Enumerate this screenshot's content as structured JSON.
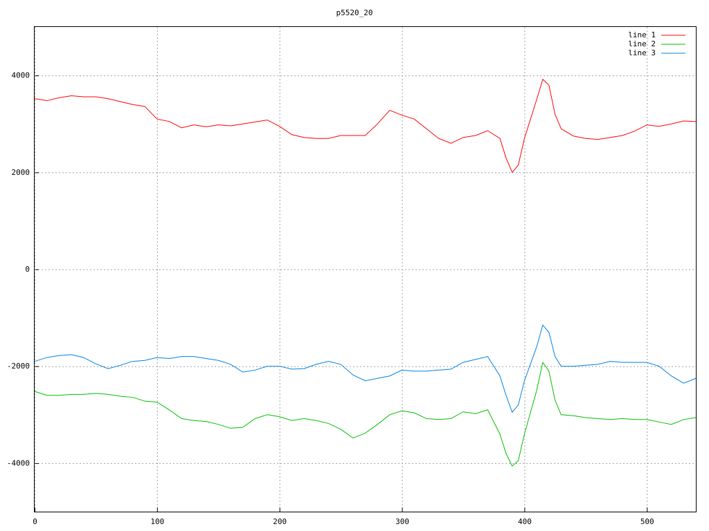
{
  "chart_data": {
    "type": "line",
    "title": "p5520_20",
    "x": [
      0,
      10,
      20,
      30,
      40,
      50,
      60,
      70,
      80,
      90,
      100,
      110,
      120,
      130,
      140,
      150,
      160,
      170,
      180,
      190,
      200,
      210,
      220,
      230,
      240,
      250,
      260,
      270,
      280,
      290,
      300,
      310,
      320,
      330,
      340,
      350,
      360,
      370,
      380,
      385,
      390,
      395,
      400,
      410,
      415,
      420,
      425,
      430,
      440,
      450,
      460,
      470,
      480,
      490,
      500,
      510,
      520,
      530,
      540
    ],
    "series": [
      {
        "name": "line 1",
        "color": "#ff0000",
        "values": [
          3520,
          3480,
          3540,
          3580,
          3560,
          3560,
          3520,
          3460,
          3400,
          3360,
          3100,
          3050,
          2920,
          2980,
          2940,
          2980,
          2960,
          3000,
          3040,
          3080,
          2950,
          2780,
          2720,
          2700,
          2700,
          2760,
          2760,
          2760,
          3000,
          3280,
          3180,
          3100,
          2900,
          2700,
          2600,
          2720,
          2760,
          2860,
          2700,
          2300,
          2000,
          2150,
          2700,
          3500,
          3920,
          3800,
          3200,
          2900,
          2750,
          2700,
          2680,
          2720,
          2760,
          2850,
          2980,
          2950,
          3000,
          3060,
          3050
        ]
      },
      {
        "name": "line 2",
        "color": "#00c000",
        "values": [
          -2520,
          -2600,
          -2600,
          -2580,
          -2580,
          -2560,
          -2580,
          -2620,
          -2640,
          -2720,
          -2740,
          -2900,
          -3080,
          -3120,
          -3140,
          -3200,
          -3280,
          -3260,
          -3080,
          -3000,
          -3040,
          -3120,
          -3080,
          -3120,
          -3180,
          -3300,
          -3480,
          -3380,
          -3200,
          -3000,
          -2920,
          -2960,
          -3080,
          -3100,
          -3080,
          -2940,
          -2980,
          -2900,
          -3400,
          -3800,
          -4060,
          -3950,
          -3400,
          -2500,
          -1920,
          -2100,
          -2700,
          -3000,
          -3020,
          -3060,
          -3080,
          -3100,
          -3080,
          -3100,
          -3100,
          -3150,
          -3200,
          -3100,
          -3060
        ]
      },
      {
        "name": "line 3",
        "color": "#0080e0",
        "values": [
          -1900,
          -1820,
          -1780,
          -1760,
          -1820,
          -1950,
          -2050,
          -1980,
          -1900,
          -1880,
          -1820,
          -1840,
          -1800,
          -1800,
          -1840,
          -1880,
          -1960,
          -2120,
          -2080,
          -2000,
          -2000,
          -2060,
          -2050,
          -1960,
          -1900,
          -1960,
          -2180,
          -2300,
          -2250,
          -2200,
          -2080,
          -2100,
          -2100,
          -2080,
          -2060,
          -1920,
          -1860,
          -1800,
          -2200,
          -2600,
          -2950,
          -2800,
          -2300,
          -1600,
          -1150,
          -1300,
          -1800,
          -2000,
          -2000,
          -1980,
          -1960,
          -1900,
          -1920,
          -1920,
          -1920,
          -2000,
          -2200,
          -2350,
          -2250
        ]
      }
    ],
    "xlim": [
      0,
      540
    ],
    "xticks": [
      0,
      100,
      200,
      300,
      400,
      500
    ],
    "ylim": [
      -5000,
      5000
    ],
    "yticks": [
      -4000,
      -2000,
      0,
      2000,
      4000
    ],
    "grid": true,
    "legend": "top-right"
  }
}
